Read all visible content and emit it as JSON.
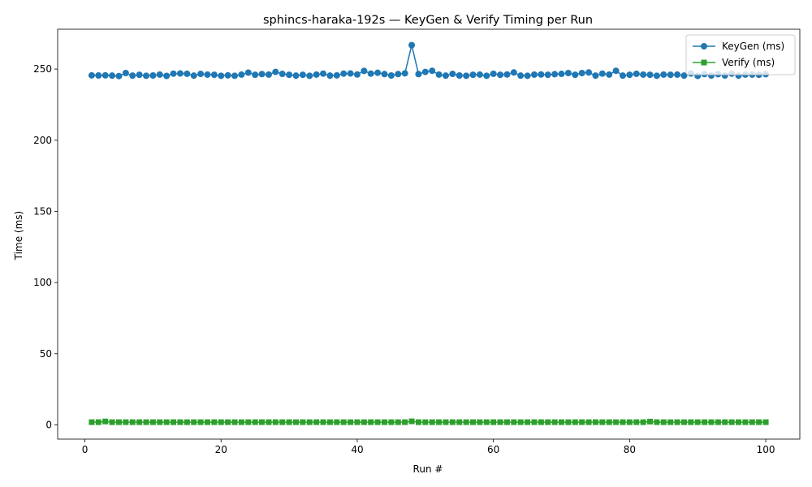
{
  "chart_data": {
    "type": "line",
    "title": "sphincs-haraka-192s — KeyGen & Verify Timing per Run",
    "xlabel": "Run #",
    "ylabel": "Time (ms)",
    "xlim": [
      -4,
      105
    ],
    "ylim": [
      -10,
      278
    ],
    "xticks": [
      0,
      20,
      40,
      60,
      80,
      100
    ],
    "yticks": [
      0,
      50,
      100,
      150,
      200,
      250
    ],
    "grid": false,
    "legend_position": "top-right",
    "x": [
      1,
      2,
      3,
      4,
      5,
      6,
      7,
      8,
      9,
      10,
      11,
      12,
      13,
      14,
      15,
      16,
      17,
      18,
      19,
      20,
      21,
      22,
      23,
      24,
      25,
      26,
      27,
      28,
      29,
      30,
      31,
      32,
      33,
      34,
      35,
      36,
      37,
      38,
      39,
      40,
      41,
      42,
      43,
      44,
      45,
      46,
      47,
      48,
      49,
      50,
      51,
      52,
      53,
      54,
      55,
      56,
      57,
      58,
      59,
      60,
      61,
      62,
      63,
      64,
      65,
      66,
      67,
      68,
      69,
      70,
      71,
      72,
      73,
      74,
      75,
      76,
      77,
      78,
      79,
      80,
      81,
      82,
      83,
      84,
      85,
      86,
      87,
      88,
      89,
      90,
      91,
      92,
      93,
      94,
      95,
      96,
      97,
      98,
      99,
      100
    ],
    "series": [
      {
        "name": "KeyGen (ms)",
        "color": "#1f77b4",
        "marker": "circle",
        "values": [
          245.6,
          245.5,
          245.6,
          245.4,
          245.1,
          247.2,
          245.4,
          246.0,
          245.3,
          245.5,
          246.1,
          245.2,
          246.8,
          246.9,
          246.7,
          245.4,
          246.6,
          246.1,
          246.0,
          245.3,
          245.6,
          245.3,
          246.1,
          247.5,
          246.0,
          246.5,
          246.1,
          248.0,
          246.6,
          246.0,
          245.4,
          246.0,
          245.3,
          246.1,
          246.8,
          245.4,
          245.6,
          246.8,
          246.9,
          246.2,
          248.7,
          246.8,
          247.4,
          246.5,
          245.5,
          246.5,
          247.0,
          266.8,
          246.5,
          248.0,
          248.8,
          246.1,
          245.4,
          246.6,
          245.5,
          245.3,
          246.0,
          246.1,
          245.3,
          246.7,
          246.0,
          246.2,
          247.6,
          245.4,
          245.3,
          246.1,
          246.2,
          246.0,
          246.4,
          246.6,
          247.2,
          246.0,
          247.2,
          247.6,
          245.4,
          246.8,
          246.1,
          248.8,
          245.4,
          246.0,
          246.7,
          246.1,
          246.0,
          245.3,
          246.1,
          246.0,
          246.1,
          245.4,
          246.9,
          245.2,
          246.5,
          245.5,
          246.4,
          245.5,
          246.8,
          245.4,
          246.1,
          246.1,
          246.0,
          246.4
        ]
      },
      {
        "name": "Verify (ms)",
        "color": "#2ca02c",
        "marker": "square",
        "values": [
          1.9,
          1.9,
          2.4,
          1.9,
          1.9,
          1.9,
          1.9,
          1.9,
          1.9,
          1.9,
          1.9,
          1.9,
          1.9,
          1.9,
          1.9,
          1.9,
          1.9,
          1.9,
          1.9,
          1.9,
          1.9,
          1.9,
          1.9,
          1.9,
          1.9,
          1.9,
          1.9,
          1.9,
          1.9,
          1.9,
          1.9,
          1.9,
          1.9,
          1.9,
          1.9,
          1.9,
          1.9,
          1.9,
          1.9,
          1.9,
          1.9,
          1.9,
          1.9,
          1.9,
          1.9,
          1.9,
          1.9,
          2.5,
          1.9,
          1.9,
          1.9,
          1.9,
          1.9,
          1.9,
          1.9,
          1.9,
          1.9,
          1.9,
          1.9,
          1.9,
          1.9,
          1.9,
          1.9,
          1.9,
          1.9,
          1.9,
          1.9,
          1.9,
          1.9,
          1.9,
          1.9,
          1.9,
          1.9,
          1.9,
          1.9,
          1.9,
          1.9,
          1.9,
          1.9,
          1.9,
          1.9,
          1.9,
          2.3,
          1.9,
          1.9,
          1.9,
          1.9,
          1.9,
          1.9,
          1.9,
          1.9,
          1.9,
          1.9,
          1.9,
          1.9,
          1.9,
          1.9,
          1.9,
          1.9,
          1.9
        ]
      }
    ]
  }
}
